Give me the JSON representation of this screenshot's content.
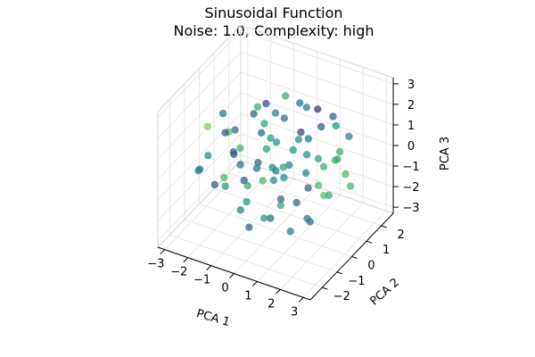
{
  "chart_data": {
    "type": "scatter3d",
    "title": "Sinusoidal Function",
    "subtitle": "Noise: 1.0, Complexity: high",
    "xlabel": "PCA 1",
    "ylabel": "PCA 2",
    "zlabel": "PCA 3",
    "xlim": [
      -3.3,
      3.3
    ],
    "ylim": [
      -2.8,
      2.8
    ],
    "zlim": [
      -3.3,
      3.3
    ],
    "xticks": [
      -3,
      -2,
      -1,
      0,
      1,
      2,
      3
    ],
    "yticks": [
      -2,
      -1,
      0,
      1,
      2
    ],
    "zticks": [
      -3,
      -2,
      -1,
      0,
      1,
      2,
      3
    ],
    "xtick_labels": [
      "−3",
      "−2",
      "−1",
      "0",
      "1",
      "2",
      "3"
    ],
    "ytick_labels": [
      "−2",
      "−1",
      "0",
      "1",
      "2"
    ],
    "ztick_labels": [
      "−3",
      "−2",
      "−1",
      "0",
      "1",
      "2",
      "3"
    ],
    "grid": true,
    "colormap": [
      "#440154",
      "#3b528b",
      "#21918c",
      "#5ec962",
      "#fde725"
    ],
    "point_alpha": 0.75,
    "points": [
      [
        -1.2,
        0.4,
        1.6,
        0.32
      ],
      [
        0.3,
        -0.8,
        1.9,
        0.55
      ],
      [
        1.1,
        0.5,
        1.2,
        0.41
      ],
      [
        -0.4,
        1.3,
        2.1,
        0.62
      ],
      [
        0.8,
        1.6,
        1.7,
        0.18
      ],
      [
        -1.9,
        -0.2,
        0.9,
        0.71
      ],
      [
        1.7,
        -0.6,
        0.6,
        0.47
      ],
      [
        -0.9,
        -1.4,
        1.1,
        0.29
      ],
      [
        2.1,
        0.9,
        0.3,
        0.58
      ],
      [
        -2.2,
        0.7,
        0.2,
        0.36
      ],
      [
        0.0,
        0.0,
        2.4,
        0.44
      ],
      [
        1.4,
        1.9,
        0.9,
        0.52
      ],
      [
        -1.5,
        1.7,
        1.0,
        0.25
      ],
      [
        0.6,
        -1.8,
        0.7,
        0.66
      ],
      [
        -0.2,
        0.9,
        1.4,
        0.39
      ],
      [
        2.5,
        -0.3,
        -0.4,
        0.61
      ],
      [
        -2.6,
        -0.5,
        -0.3,
        0.48
      ],
      [
        1.0,
        -1.2,
        -0.5,
        0.35
      ],
      [
        -1.1,
        1.1,
        -0.6,
        0.57
      ],
      [
        0.4,
        0.3,
        -0.2,
        0.42
      ],
      [
        -0.5,
        -0.4,
        0.1,
        0.31
      ],
      [
        1.8,
        1.2,
        -0.1,
        0.69
      ],
      [
        -1.8,
        -1.3,
        -0.8,
        0.27
      ],
      [
        0.2,
        1.8,
        -0.9,
        0.5
      ],
      [
        -0.3,
        -1.9,
        -1.0,
        0.45
      ],
      [
        2.2,
        -1.1,
        -1.2,
        0.38
      ],
      [
        -2.3,
        1.2,
        -1.1,
        0.64
      ],
      [
        0.9,
        0.8,
        -1.5,
        0.33
      ],
      [
        -0.8,
        -0.7,
        -1.7,
        0.54
      ],
      [
        1.5,
        -0.2,
        -2.0,
        0.43
      ],
      [
        -1.4,
        0.3,
        -1.9,
        0.6
      ],
      [
        0.1,
        -0.5,
        -2.3,
        0.37
      ],
      [
        -0.6,
        1.5,
        -2.1,
        0.49
      ],
      [
        1.2,
        1.4,
        -2.2,
        0.72
      ],
      [
        -3.0,
        0.1,
        0.5,
        0.8
      ],
      [
        2.9,
        0.2,
        0.4,
        0.67
      ],
      [
        0.5,
        2.3,
        0.2,
        0.3
      ],
      [
        -0.7,
        -2.3,
        0.3,
        0.56
      ],
      [
        1.9,
        2.0,
        0.5,
        0.46
      ],
      [
        -2.0,
        -2.0,
        0.4,
        0.4
      ],
      [
        0.7,
        0.1,
        0.8,
        0.53
      ],
      [
        -1.0,
        0.6,
        0.6,
        0.34
      ],
      [
        1.3,
        -1.5,
        1.4,
        0.59
      ],
      [
        -1.6,
        -0.9,
        1.5,
        0.26
      ],
      [
        2.4,
        0.6,
        1.0,
        0.63
      ],
      [
        -2.4,
        0.2,
        1.3,
        0.44
      ],
      [
        0.3,
        1.1,
        0.4,
        0.51
      ],
      [
        -0.1,
        -1.1,
        0.5,
        0.38
      ],
      [
        1.6,
        0.4,
        -0.8,
        0.7
      ],
      [
        -1.3,
        -0.1,
        -1.3,
        0.28
      ],
      [
        0.8,
        -0.9,
        -1.1,
        0.6
      ],
      [
        -0.4,
        0.5,
        -1.4,
        0.47
      ],
      [
        2.0,
        -1.7,
        0.1,
        0.35
      ],
      [
        -1.7,
        1.9,
        -0.2,
        0.58
      ],
      [
        0.0,
        2.1,
        1.1,
        0.42
      ],
      [
        0.2,
        -2.1,
        -1.5,
        0.31
      ],
      [
        2.6,
        1.0,
        -0.9,
        0.65
      ],
      [
        -2.7,
        -1.0,
        -0.7,
        0.5
      ],
      [
        1.1,
        0.0,
        1.9,
        0.22
      ],
      [
        -0.9,
        0.2,
        2.2,
        0.61
      ],
      [
        0.6,
        0.7,
        2.6,
        0.39
      ],
      [
        -0.3,
        -0.3,
        -2.6,
        0.55
      ],
      [
        0.9,
        -0.4,
        -2.7,
        0.45
      ],
      [
        -1.2,
        -1.6,
        0.0,
        0.68
      ],
      [
        1.4,
        1.7,
        1.5,
        0.33
      ],
      [
        -0.6,
        1.0,
        0.0,
        0.52
      ],
      [
        0.4,
        -0.6,
        0.2,
        0.43
      ],
      [
        -2.1,
        0.9,
        -1.6,
        0.36
      ],
      [
        2.3,
        -0.7,
        1.6,
        0.57
      ],
      [
        -0.2,
        0.1,
        -0.4,
        0.48
      ],
      [
        1.7,
        0.6,
        0.0,
        0.62
      ],
      [
        -1.5,
        -0.5,
        0.3,
        0.29
      ]
    ]
  }
}
